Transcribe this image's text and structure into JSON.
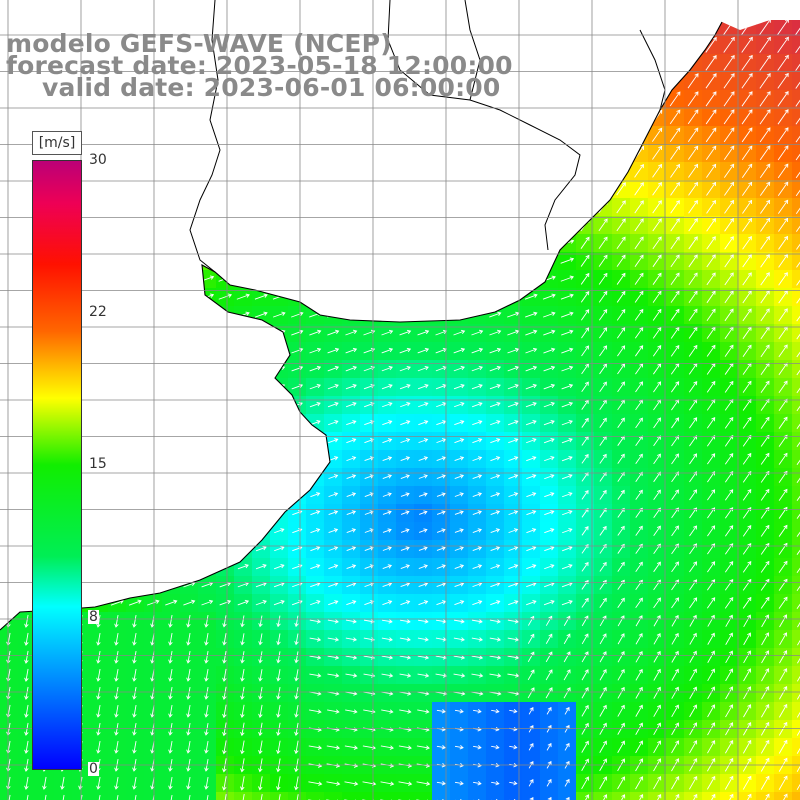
{
  "title": {
    "line1": "modelo GEFS-WAVE (NCEP)",
    "line2": "forecast date: 2023-05-18 12:00:00",
    "line3": "valid date: 2023-06-01 06:00:00"
  },
  "colorbar": {
    "units": "[m/s]",
    "tick_labels": [
      "30",
      "22",
      "15",
      "8",
      "0"
    ],
    "min": 0,
    "max": 30,
    "colors": [
      "#0000ff",
      "#00aaff",
      "#00ffff",
      "#00ee55",
      "#11ee00",
      "#ffff00",
      "#ffbb00",
      "#ff6600",
      "#ff1100",
      "#ee0055",
      "#bb0077"
    ]
  },
  "map": {
    "field": "wind speed with direction arrows",
    "land_color": "#ffffff",
    "coastline_color": "#000000",
    "grid_color": "#888888",
    "arrow_color": "#ffffff"
  }
}
